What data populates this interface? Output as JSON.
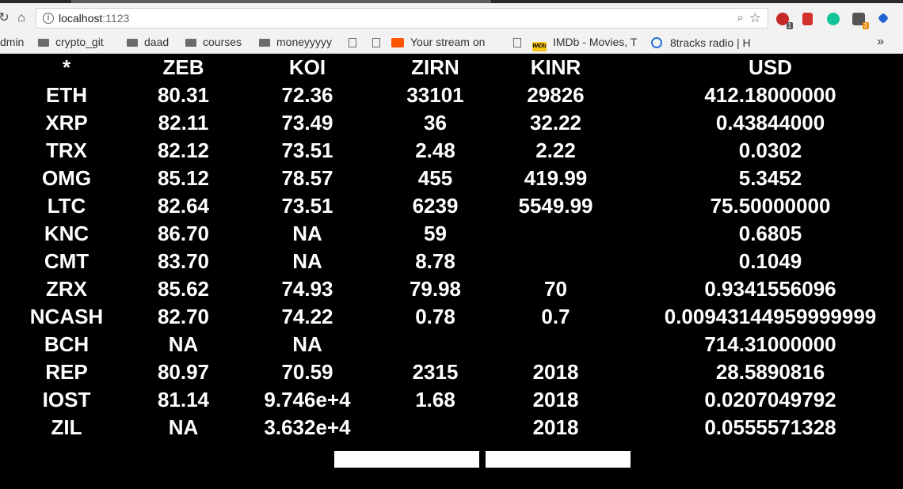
{
  "browser": {
    "url_host": "localhost",
    "url_port": ":1123",
    "bookmarks": [
      {
        "label": "dmin",
        "icon": "folder"
      },
      {
        "label": "crypto_git",
        "icon": "folder"
      },
      {
        "label": "daad",
        "icon": "folder"
      },
      {
        "label": "courses",
        "icon": "folder"
      },
      {
        "label": "moneyyyyy",
        "icon": "folder"
      },
      {
        "label": "",
        "icon": "page"
      },
      {
        "label": "Your stream on",
        "icon": "soundcloud"
      },
      {
        "label": "IMDb - Movies, T",
        "icon": "imdb"
      },
      {
        "label": "8tracks radio | H",
        "icon": "8tracks"
      }
    ],
    "overflow": "»"
  },
  "table": {
    "headers": [
      "*",
      "ZEB",
      "KOI",
      "ZIRN",
      "KINR",
      "USD"
    ],
    "rows": [
      [
        "ETH",
        "80.31",
        "72.36",
        "33101",
        "29826",
        "412.18000000"
      ],
      [
        "XRP",
        "82.11",
        "73.49",
        "36",
        "32.22",
        "0.43844000"
      ],
      [
        "TRX",
        "82.12",
        "73.51",
        "2.48",
        "2.22",
        "0.0302"
      ],
      [
        "OMG",
        "85.12",
        "78.57",
        "455",
        "419.99",
        "5.3452"
      ],
      [
        "LTC",
        "82.64",
        "73.51",
        "6239",
        "5549.99",
        "75.50000000"
      ],
      [
        "KNC",
        "86.70",
        "NA",
        "59",
        "",
        "0.6805"
      ],
      [
        "CMT",
        "83.70",
        "NA",
        "8.78",
        "",
        "0.1049"
      ],
      [
        "ZRX",
        "85.62",
        "74.93",
        "79.98",
        "70",
        "0.9341556096"
      ],
      [
        "NCASH",
        "82.70",
        "74.22",
        "0.78",
        "0.7",
        "0.00943144959999999"
      ],
      [
        "BCH",
        "NA",
        "NA",
        "",
        "",
        "714.31000000"
      ],
      [
        "REP",
        "80.97",
        "70.59",
        "2315",
        "2018",
        "28.5890816"
      ],
      [
        "IOST",
        "81.14",
        "9.746e+4",
        "1.68",
        "2018",
        "0.0207049792"
      ],
      [
        "ZIL",
        "NA",
        "3.632e+4",
        "",
        "2018",
        "0.0555571328"
      ]
    ]
  },
  "buttons": [
    {
      "label": ""
    },
    {
      "label": ""
    }
  ]
}
